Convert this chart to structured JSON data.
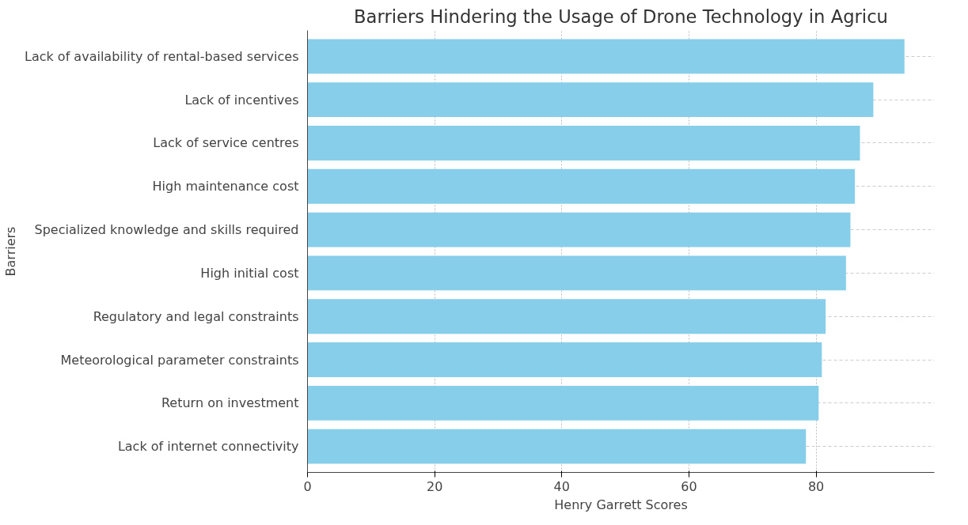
{
  "chart_data": {
    "type": "bar",
    "orientation": "horizontal",
    "title": "Barriers Hindering the Usage of Drone Technology in Agricu",
    "xlabel": "Henry Garrett Scores",
    "ylabel": "Barriers",
    "categories": [
      "Lack of availability of rental-based services",
      "Lack of incentives",
      "Lack of service centres",
      "High maintenance cost",
      "Specialized knowledge and skills required",
      "High initial cost",
      "Regulatory and legal constraints",
      "Meteorological parameter constraints",
      "Return on investment",
      "Lack of internet connectivity"
    ],
    "values": [
      93.9,
      89.0,
      86.9,
      86.1,
      85.4,
      84.7,
      81.5,
      80.9,
      80.4,
      78.4
    ],
    "color": "#87ceeb",
    "xlim": [
      0,
      98.6
    ],
    "xticks": [
      0,
      20,
      40,
      60,
      80
    ],
    "grid": true
  }
}
